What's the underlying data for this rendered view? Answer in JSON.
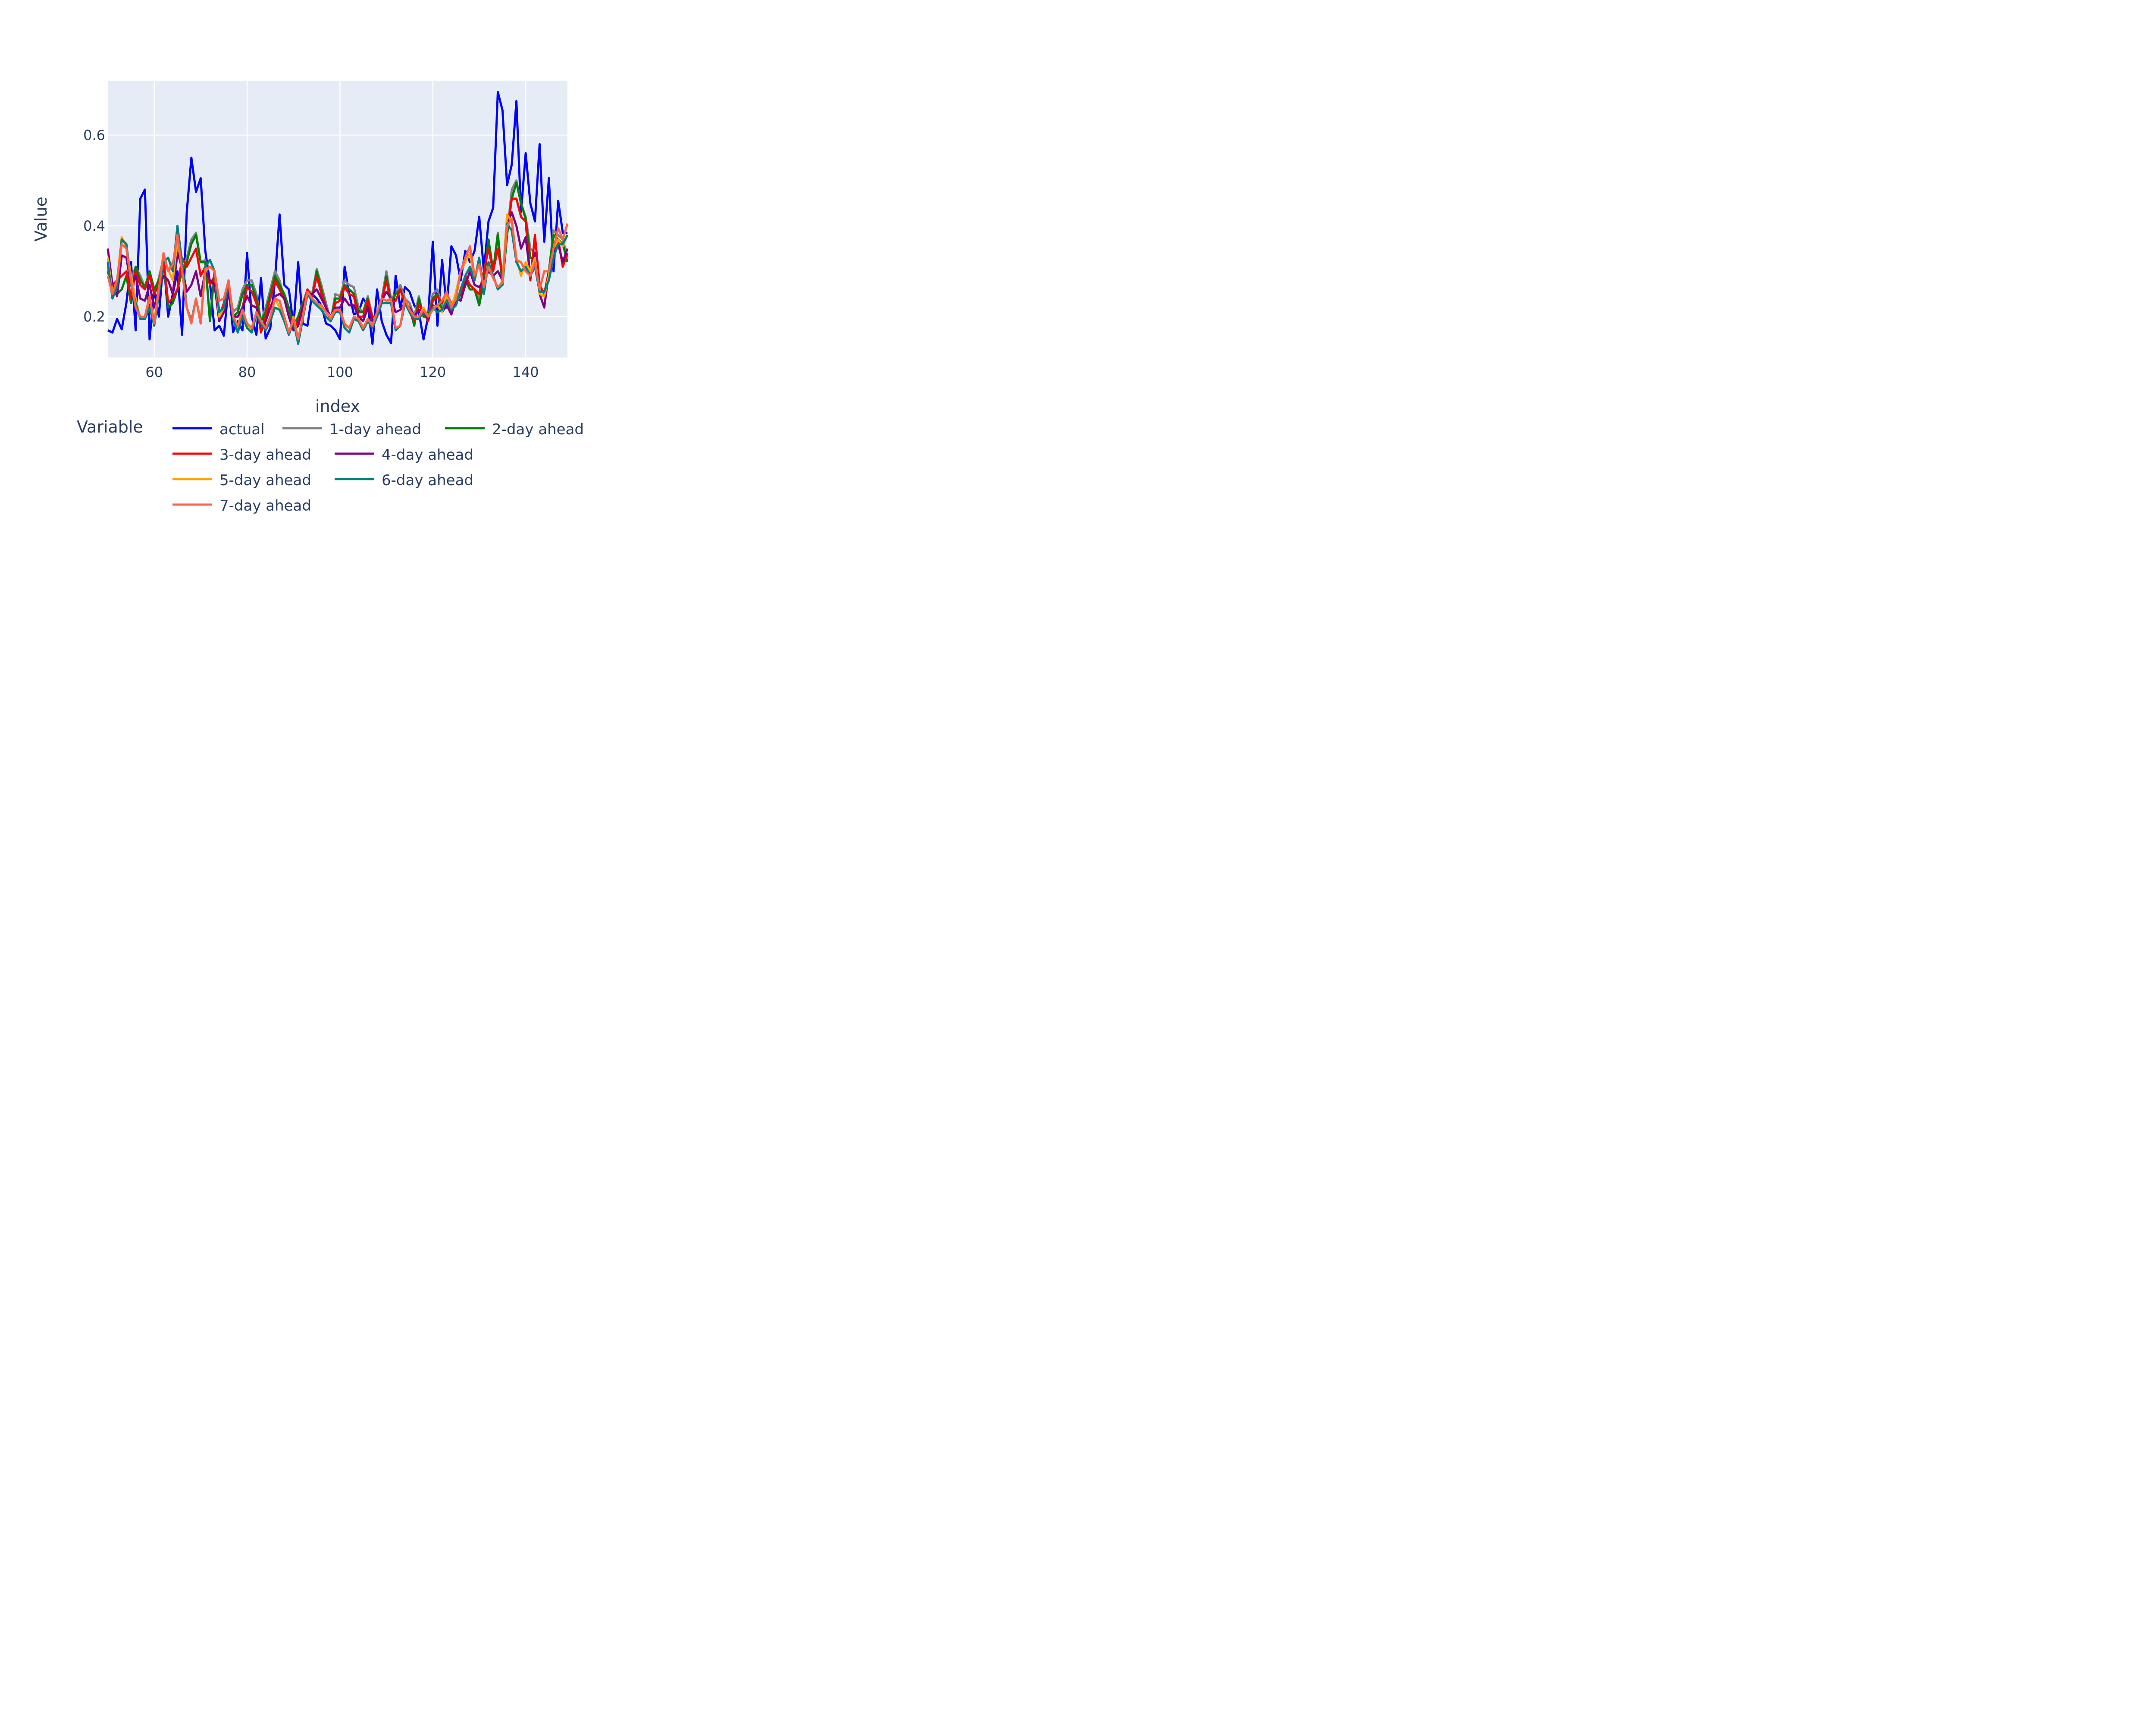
{
  "chart_data": {
    "type": "line",
    "xlabel": "index",
    "ylabel": "Value",
    "xlim": [
      50,
      149
    ],
    "ylim": [
      0.11,
      0.72
    ],
    "x_ticks": [
      60,
      80,
      100,
      120,
      140
    ],
    "x_tick_labels": [
      "60",
      "80",
      "100",
      "120",
      "140"
    ],
    "y_ticks": [
      0.2,
      0.4,
      0.6
    ],
    "y_tick_labels": [
      "0.2",
      "0.4",
      "0.6"
    ],
    "grid": true,
    "legend_title": "Variable",
    "legend_position": "bottom",
    "x": [
      50,
      51,
      52,
      53,
      54,
      55,
      56,
      57,
      58,
      59,
      60,
      61,
      62,
      63,
      64,
      65,
      66,
      67,
      68,
      69,
      70,
      71,
      72,
      73,
      74,
      75,
      76,
      77,
      78,
      79,
      80,
      81,
      82,
      83,
      84,
      85,
      86,
      87,
      88,
      89,
      90,
      91,
      92,
      93,
      94,
      95,
      96,
      97,
      98,
      99,
      100,
      101,
      102,
      103,
      104,
      105,
      106,
      107,
      108,
      109,
      110,
      111,
      112,
      113,
      114,
      115,
      116,
      117,
      118,
      119,
      120,
      121,
      122,
      123,
      124,
      125,
      126,
      127,
      128,
      129,
      130,
      131,
      132,
      133,
      134,
      135,
      136,
      137,
      138,
      139,
      140,
      141,
      142,
      143,
      144,
      145,
      146,
      147,
      148,
      149
    ],
    "series": [
      {
        "name": "actual",
        "color": "#0000ff",
        "values": [
          0.17,
          0.165,
          0.195,
          0.172,
          0.23,
          0.32,
          0.17,
          0.46,
          0.48,
          0.15,
          0.26,
          0.2,
          0.33,
          0.2,
          0.25,
          0.3,
          0.16,
          0.43,
          0.55,
          0.475,
          0.505,
          0.345,
          0.275,
          0.17,
          0.18,
          0.158,
          0.27,
          0.166,
          0.19,
          0.17,
          0.34,
          0.2,
          0.16,
          0.285,
          0.152,
          0.175,
          0.28,
          0.425,
          0.27,
          0.26,
          0.18,
          0.32,
          0.185,
          0.18,
          0.25,
          0.24,
          0.225,
          0.185,
          0.18,
          0.17,
          0.15,
          0.31,
          0.25,
          0.205,
          0.21,
          0.24,
          0.225,
          0.14,
          0.26,
          0.19,
          0.16,
          0.142,
          0.29,
          0.22,
          0.265,
          0.255,
          0.225,
          0.21,
          0.15,
          0.2,
          0.365,
          0.18,
          0.325,
          0.22,
          0.355,
          0.335,
          0.28,
          0.345,
          0.32,
          0.345,
          0.42,
          0.3,
          0.41,
          0.44,
          0.695,
          0.655,
          0.49,
          0.535,
          0.675,
          0.43,
          0.56,
          0.45,
          0.41,
          0.58,
          0.365,
          0.505,
          0.3,
          0.455,
          0.385,
          0.385
        ]
      },
      {
        "name": "1-day ahead",
        "color": "#808080",
        "values": [
          0.31,
          0.25,
          0.28,
          0.37,
          0.36,
          0.28,
          0.31,
          0.29,
          0.265,
          0.3,
          0.25,
          0.285,
          0.33,
          0.3,
          0.32,
          0.35,
          0.3,
          0.33,
          0.37,
          0.385,
          0.32,
          0.325,
          0.19,
          0.3,
          0.21,
          0.22,
          0.27,
          0.21,
          0.22,
          0.26,
          0.28,
          0.28,
          0.25,
          0.19,
          0.22,
          0.26,
          0.3,
          0.28,
          0.24,
          0.22,
          0.18,
          0.2,
          0.23,
          0.26,
          0.25,
          0.305,
          0.27,
          0.23,
          0.19,
          0.25,
          0.245,
          0.28,
          0.27,
          0.265,
          0.22,
          0.21,
          0.245,
          0.2,
          0.2,
          0.24,
          0.3,
          0.24,
          0.25,
          0.27,
          0.24,
          0.23,
          0.2,
          0.245,
          0.2,
          0.2,
          0.25,
          0.26,
          0.22,
          0.25,
          0.23,
          0.24,
          0.25,
          0.29,
          0.27,
          0.26,
          0.24,
          0.28,
          0.37,
          0.3,
          0.385,
          0.28,
          0.38,
          0.48,
          0.5,
          0.45,
          0.42,
          0.35,
          0.34,
          0.27,
          0.25,
          0.3,
          0.39,
          0.38,
          0.37,
          0.33
        ]
      },
      {
        "name": "2-day ahead",
        "color": "#008000",
        "values": [
          0.3,
          0.26,
          0.25,
          0.26,
          0.29,
          0.23,
          0.31,
          0.28,
          0.265,
          0.3,
          0.26,
          0.28,
          0.32,
          0.22,
          0.23,
          0.26,
          0.3,
          0.32,
          0.36,
          0.38,
          0.32,
          0.32,
          0.19,
          0.3,
          0.21,
          0.22,
          0.27,
          0.2,
          0.21,
          0.25,
          0.27,
          0.27,
          0.24,
          0.19,
          0.21,
          0.25,
          0.29,
          0.27,
          0.25,
          0.22,
          0.18,
          0.2,
          0.23,
          0.25,
          0.24,
          0.3,
          0.26,
          0.22,
          0.19,
          0.24,
          0.24,
          0.27,
          0.26,
          0.25,
          0.21,
          0.21,
          0.24,
          0.19,
          0.2,
          0.23,
          0.29,
          0.23,
          0.25,
          0.26,
          0.23,
          0.22,
          0.18,
          0.24,
          0.2,
          0.2,
          0.24,
          0.25,
          0.21,
          0.24,
          0.22,
          0.23,
          0.25,
          0.28,
          0.26,
          0.26,
          0.225,
          0.28,
          0.37,
          0.3,
          0.38,
          0.27,
          0.38,
          0.46,
          0.495,
          0.45,
          0.415,
          0.33,
          0.33,
          0.27,
          0.25,
          0.3,
          0.38,
          0.37,
          0.36,
          0.32
        ]
      },
      {
        "name": "3-day ahead",
        "color": "#ff0000",
        "values": [
          0.3,
          0.27,
          0.28,
          0.29,
          0.3,
          0.24,
          0.3,
          0.27,
          0.26,
          0.29,
          0.25,
          0.27,
          0.33,
          0.23,
          0.24,
          0.26,
          0.33,
          0.31,
          0.33,
          0.35,
          0.29,
          0.31,
          0.27,
          0.29,
          0.2,
          0.23,
          0.27,
          0.2,
          0.2,
          0.22,
          0.265,
          0.255,
          0.23,
          0.165,
          0.2,
          0.24,
          0.28,
          0.26,
          0.24,
          0.2,
          0.17,
          0.19,
          0.22,
          0.26,
          0.24,
          0.29,
          0.25,
          0.22,
          0.19,
          0.23,
          0.235,
          0.265,
          0.25,
          0.245,
          0.2,
          0.2,
          0.235,
          0.2,
          0.2,
          0.235,
          0.28,
          0.23,
          0.235,
          0.26,
          0.23,
          0.21,
          0.19,
          0.225,
          0.21,
          0.19,
          0.235,
          0.245,
          0.23,
          0.245,
          0.21,
          0.24,
          0.25,
          0.29,
          0.27,
          0.26,
          0.25,
          0.3,
          0.35,
          0.3,
          0.35,
          0.29,
          0.39,
          0.46,
          0.46,
          0.42,
          0.41,
          0.28,
          0.38,
          0.27,
          0.25,
          0.3,
          0.35,
          0.37,
          0.31,
          0.34
        ]
      },
      {
        "name": "4-day ahead",
        "color": "#800080",
        "values": [
          0.35,
          0.27,
          0.245,
          0.335,
          0.33,
          0.27,
          0.29,
          0.24,
          0.235,
          0.27,
          0.22,
          0.26,
          0.29,
          0.28,
          0.25,
          0.34,
          0.31,
          0.255,
          0.27,
          0.3,
          0.245,
          0.3,
          0.28,
          0.27,
          0.19,
          0.21,
          0.25,
          0.2,
          0.2,
          0.22,
          0.245,
          0.225,
          0.22,
          0.18,
          0.19,
          0.22,
          0.245,
          0.25,
          0.24,
          0.2,
          0.17,
          0.18,
          0.22,
          0.25,
          0.25,
          0.26,
          0.24,
          0.22,
          0.2,
          0.22,
          0.22,
          0.24,
          0.225,
          0.225,
          0.2,
          0.19,
          0.22,
          0.19,
          0.2,
          0.235,
          0.255,
          0.24,
          0.21,
          0.215,
          0.23,
          0.22,
          0.2,
          0.215,
          0.21,
          0.195,
          0.225,
          0.22,
          0.21,
          0.225,
          0.205,
          0.24,
          0.235,
          0.27,
          0.3,
          0.27,
          0.265,
          0.28,
          0.3,
          0.29,
          0.3,
          0.28,
          0.4,
          0.43,
          0.4,
          0.35,
          0.375,
          0.29,
          0.34,
          0.25,
          0.22,
          0.3,
          0.35,
          0.36,
          0.32,
          0.35
        ]
      },
      {
        "name": "5-day ahead",
        "color": "#ffa500",
        "values": [
          0.33,
          0.25,
          0.28,
          0.375,
          0.355,
          0.29,
          0.24,
          0.195,
          0.2,
          0.24,
          0.19,
          0.26,
          0.33,
          0.305,
          0.28,
          0.37,
          0.31,
          0.22,
          0.19,
          0.24,
          0.19,
          0.3,
          0.31,
          0.3,
          0.2,
          0.22,
          0.28,
          0.2,
          0.17,
          0.215,
          0.18,
          0.17,
          0.21,
          0.19,
          0.17,
          0.19,
          0.24,
          0.22,
          0.2,
          0.16,
          0.2,
          0.15,
          0.2,
          0.255,
          0.24,
          0.23,
          0.22,
          0.21,
          0.2,
          0.215,
          0.215,
          0.18,
          0.175,
          0.2,
          0.195,
          0.175,
          0.195,
          0.18,
          0.21,
          0.24,
          0.235,
          0.235,
          0.175,
          0.18,
          0.24,
          0.215,
          0.2,
          0.2,
          0.22,
          0.2,
          0.22,
          0.225,
          0.21,
          0.25,
          0.22,
          0.255,
          0.3,
          0.32,
          0.34,
          0.28,
          0.32,
          0.26,
          0.32,
          0.29,
          0.26,
          0.28,
          0.425,
          0.41,
          0.33,
          0.29,
          0.32,
          0.3,
          0.33,
          0.25,
          0.245,
          0.29,
          0.35,
          0.37,
          0.355,
          0.38
        ]
      },
      {
        "name": "6-day ahead",
        "color": "#008080",
        "values": [
          0.32,
          0.24,
          0.265,
          0.37,
          0.36,
          0.27,
          0.23,
          0.195,
          0.195,
          0.22,
          0.18,
          0.25,
          0.32,
          0.33,
          0.3,
          0.4,
          0.32,
          0.22,
          0.19,
          0.24,
          0.185,
          0.31,
          0.325,
          0.3,
          0.21,
          0.22,
          0.28,
          0.195,
          0.165,
          0.2,
          0.175,
          0.165,
          0.205,
          0.185,
          0.17,
          0.19,
          0.22,
          0.215,
          0.19,
          0.16,
          0.19,
          0.14,
          0.195,
          0.25,
          0.235,
          0.225,
          0.215,
          0.2,
          0.19,
          0.21,
          0.21,
          0.175,
          0.165,
          0.195,
          0.19,
          0.17,
          0.19,
          0.175,
          0.2,
          0.23,
          0.23,
          0.23,
          0.17,
          0.18,
          0.23,
          0.21,
          0.195,
          0.195,
          0.21,
          0.2,
          0.22,
          0.21,
          0.215,
          0.235,
          0.215,
          0.225,
          0.26,
          0.29,
          0.31,
          0.28,
          0.33,
          0.25,
          0.32,
          0.29,
          0.26,
          0.27,
          0.405,
          0.39,
          0.32,
          0.3,
          0.31,
          0.29,
          0.31,
          0.255,
          0.255,
          0.28,
          0.33,
          0.36,
          0.36,
          0.38
        ]
      },
      {
        "name": "7-day ahead",
        "color": "#ff6347",
        "values": [
          0.29,
          0.25,
          0.28,
          0.36,
          0.35,
          0.28,
          0.22,
          0.2,
          0.2,
          0.245,
          0.185,
          0.26,
          0.34,
          0.3,
          0.315,
          0.38,
          0.3,
          0.22,
          0.185,
          0.24,
          0.185,
          0.305,
          0.31,
          0.3,
          0.235,
          0.24,
          0.28,
          0.2,
          0.18,
          0.215,
          0.185,
          0.175,
          0.21,
          0.19,
          0.175,
          0.2,
          0.24,
          0.235,
          0.2,
          0.165,
          0.195,
          0.15,
          0.2,
          0.255,
          0.24,
          0.23,
          0.225,
          0.21,
          0.195,
          0.215,
          0.215,
          0.185,
          0.175,
          0.2,
          0.195,
          0.175,
          0.195,
          0.18,
          0.21,
          0.24,
          0.235,
          0.24,
          0.175,
          0.18,
          0.24,
          0.215,
          0.2,
          0.2,
          0.215,
          0.2,
          0.215,
          0.225,
          0.235,
          0.255,
          0.22,
          0.24,
          0.3,
          0.33,
          0.355,
          0.29,
          0.315,
          0.265,
          0.31,
          0.285,
          0.265,
          0.275,
          0.4,
          0.415,
          0.325,
          0.32,
          0.3,
          0.29,
          0.32,
          0.26,
          0.3,
          0.3,
          0.35,
          0.395,
          0.37,
          0.405
        ]
      }
    ]
  }
}
